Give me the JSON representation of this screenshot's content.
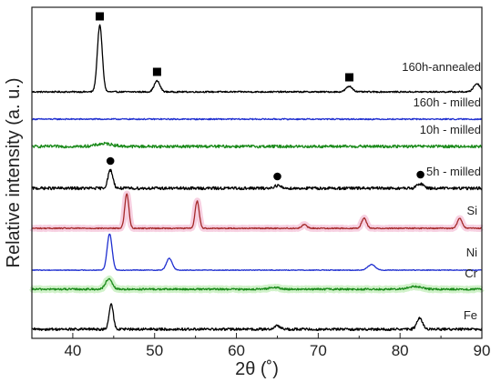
{
  "chart_data": {
    "type": "line",
    "xlabel": "2θ (˚)",
    "ylabel": "Relative intensity (a. u.)",
    "xlim": [
      35,
      90
    ],
    "xticks": [
      40,
      50,
      60,
      70,
      80,
      90
    ],
    "yticks": "none",
    "grid": false,
    "legend": "none",
    "series": [
      {
        "name": "160h-annealed",
        "color": "#000000",
        "stack_index": 7,
        "noise": 0.8,
        "peaks": [
          [
            43.3,
            73,
            0.3
          ],
          [
            50.3,
            12,
            0.35
          ],
          [
            73.8,
            6,
            0.4
          ],
          [
            89.4,
            9,
            0.4
          ]
        ],
        "markers": {
          "symbol": "square",
          "x": [
            43.3,
            50.3,
            73.8
          ]
        }
      },
      {
        "name": "160h - milled",
        "color": "#1f2fd0",
        "stack_index": 6,
        "noise": 0.7,
        "peaks": []
      },
      {
        "name": "10h - milled",
        "color": "#1a8a1a",
        "stack_index": 5,
        "noise": 1.6,
        "peaks": [
          [
            43.9,
            3,
            1.0
          ]
        ]
      },
      {
        "name": "5h - milled",
        "color": "#000000",
        "stack_index": 4,
        "noise": 1.6,
        "peaks": [
          [
            44.6,
            20,
            0.3
          ],
          [
            65.0,
            3,
            0.4
          ],
          [
            82.5,
            5,
            0.4
          ]
        ],
        "markers": {
          "symbol": "circle",
          "x": [
            44.6,
            65.0,
            82.5
          ]
        }
      },
      {
        "name": "Si",
        "color": "#a52a2a",
        "stack_index": 3,
        "noise": 0.6,
        "highlight": "#f6c8dc",
        "peaks": [
          [
            46.6,
            38,
            0.25
          ],
          [
            55.2,
            30,
            0.25
          ],
          [
            68.3,
            4,
            0.3
          ],
          [
            75.6,
            11,
            0.3
          ],
          [
            87.3,
            11,
            0.3
          ]
        ]
      },
      {
        "name": "Ni",
        "color": "#1f2fd0",
        "stack_index": 2,
        "noise": 0.4,
        "peaks": [
          [
            44.5,
            40,
            0.3
          ],
          [
            51.8,
            13,
            0.35
          ],
          [
            76.5,
            6,
            0.45
          ]
        ]
      },
      {
        "name": "Cr",
        "color": "#1a8a1a",
        "stack_index": 1,
        "noise": 1.0,
        "highlight": "#c8f0c0",
        "peaks": [
          [
            44.4,
            11,
            0.4
          ],
          [
            64.6,
            2,
            0.6
          ],
          [
            81.8,
            3,
            0.8
          ]
        ]
      },
      {
        "name": "Fe",
        "color": "#000000",
        "stack_index": 0,
        "noise": 1.4,
        "peaks": [
          [
            44.7,
            28,
            0.25
          ],
          [
            65.0,
            4,
            0.35
          ],
          [
            82.4,
            12,
            0.35
          ]
        ]
      }
    ]
  }
}
